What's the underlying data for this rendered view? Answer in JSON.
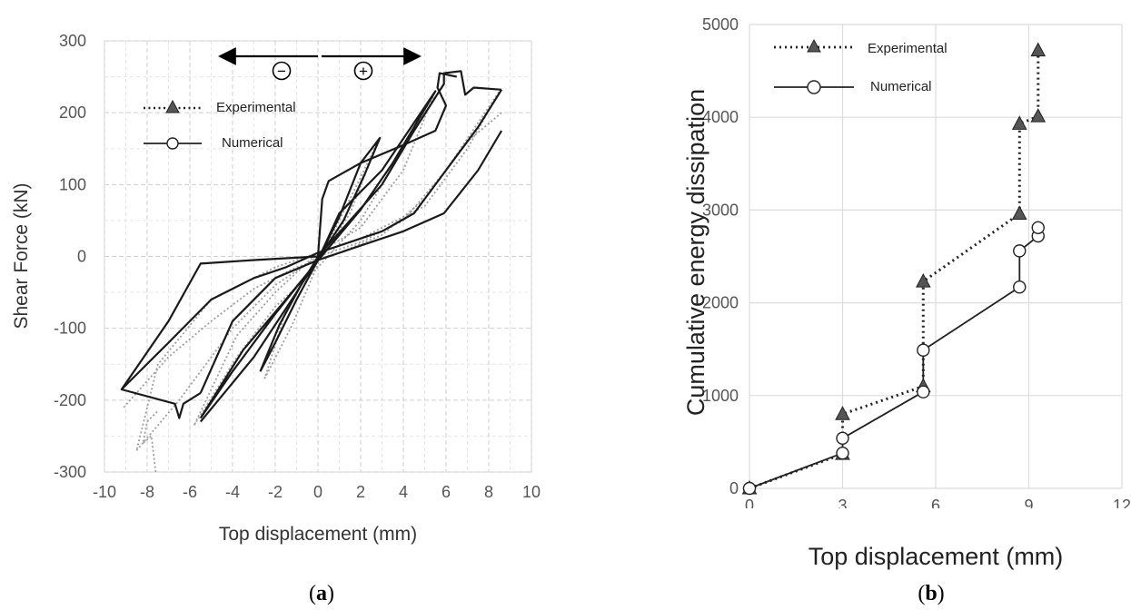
{
  "chart_data": [
    {
      "type": "line",
      "panel_label": "a",
      "ylabel": "Shear Force (kN)",
      "xlabel": "Top displacement (mm)",
      "xlim": [
        -10,
        10
      ],
      "ylim": [
        -300,
        300
      ],
      "x_ticks": [
        -10,
        -8,
        -6,
        -4,
        -2,
        0,
        2,
        4,
        6,
        8,
        10
      ],
      "y_ticks": [
        -300,
        -200,
        -100,
        0,
        100,
        200,
        300
      ],
      "x_tick_labels": [
        "-10",
        "-8",
        "-6",
        "-4",
        "-2",
        "0",
        "2",
        "4",
        "6",
        "8",
        "10"
      ],
      "y_tick_labels": [
        "-300",
        "-200",
        "-100",
        "0",
        "100",
        "200",
        "300"
      ],
      "grid": "dashed",
      "legend_position": "top-left",
      "annotation_signs": [
        "−",
        "+"
      ],
      "series": [
        {
          "name": "Experimental",
          "style": "dotted",
          "color": "#9e9e9e",
          "loops": [
            [
              [
                -2.5,
                -170
              ],
              [
                -1.2,
                -95
              ],
              [
                0,
                -10
              ],
              [
                1,
                50
              ],
              [
                2,
                110
              ],
              [
                2.8,
                160
              ],
              [
                1.5,
                60
              ],
              [
                0.5,
                15
              ],
              [
                -0.5,
                -25
              ],
              [
                -1.5,
                -75
              ],
              [
                -2.5,
                -170
              ]
            ],
            [
              [
                -5.8,
                -235
              ],
              [
                -3.8,
                -140
              ],
              [
                -2,
                -70
              ],
              [
                0,
                -15
              ],
              [
                2,
                50
              ],
              [
                4,
                150
              ],
              [
                5.5,
                230
              ],
              [
                4,
                120
              ],
              [
                2,
                40
              ],
              [
                0,
                5
              ],
              [
                -2,
                -50
              ],
              [
                -3.8,
                -110
              ],
              [
                -5.8,
                -235
              ]
            ],
            [
              [
                -8.5,
                -270
              ],
              [
                -6.5,
                -200
              ],
              [
                -4,
                -100
              ],
              [
                -2,
                -40
              ],
              [
                0,
                0
              ],
              [
                2,
                20
              ],
              [
                4,
                50
              ],
              [
                6,
                120
              ],
              [
                8.5,
                230
              ],
              [
                7,
                150
              ],
              [
                5,
                70
              ],
              [
                2,
                25
              ],
              [
                0,
                5
              ],
              [
                -2,
                -15
              ],
              [
                -5,
                -60
              ],
              [
                -7.5,
                -150
              ],
              [
                -8.5,
                -270
              ]
            ],
            [
              [
                -7.6,
                -300
              ],
              [
                -7.8,
                -250
              ],
              [
                -8.2,
                -260
              ],
              [
                -8,
                -230
              ],
              [
                -7.5,
                -215
              ]
            ],
            [
              [
                -9.1,
                -210
              ],
              [
                -7,
                -140
              ],
              [
                -5,
                -90
              ],
              [
                -3,
                -45
              ],
              [
                -1,
                -15
              ],
              [
                1,
                5
              ],
              [
                3,
                30
              ],
              [
                5,
                80
              ],
              [
                7,
                160
              ],
              [
                8.6,
                200
              ]
            ]
          ]
        },
        {
          "name": "Numerical",
          "style": "solid",
          "color": "#1a1a1a",
          "loops": [
            [
              [
                -2.7,
                -160
              ],
              [
                -2,
                -120
              ],
              [
                -1,
                -60
              ],
              [
                0,
                -5
              ],
              [
                1,
                55
              ],
              [
                2,
                130
              ],
              [
                2.9,
                165
              ],
              [
                2.2,
                115
              ],
              [
                1.2,
                50
              ],
              [
                0.2,
                5
              ],
              [
                -0.8,
                -40
              ],
              [
                -1.8,
                -95
              ],
              [
                -2.7,
                -160
              ]
            ],
            [
              [
                -5.5,
                -225
              ],
              [
                -4,
                -160
              ],
              [
                -2,
                -80
              ],
              [
                0,
                -5
              ],
              [
                1,
                60
              ],
              [
                3,
                120
              ],
              [
                5.5,
                230
              ],
              [
                3.5,
                130
              ],
              [
                2,
                65
              ],
              [
                0.3,
                5
              ],
              [
                -1.5,
                -60
              ],
              [
                -3.5,
                -130
              ],
              [
                -5.5,
                -225
              ]
            ],
            [
              [
                -5.5,
                -230
              ],
              [
                -3,
                -140
              ],
              [
                -1,
                -50
              ],
              [
                0,
                0
              ],
              [
                1.5,
                50
              ],
              [
                3,
                100
              ],
              [
                4.5,
                175
              ],
              [
                5.9,
                240
              ],
              [
                5.9,
                255
              ],
              [
                6.7,
                258
              ],
              [
                6.9,
                225
              ],
              [
                7.3,
                235
              ],
              [
                8.6,
                232
              ]
            ],
            [
              [
                8.6,
                232
              ],
              [
                7.5,
                180
              ],
              [
                6,
                120
              ],
              [
                4.5,
                60
              ],
              [
                3,
                35
              ],
              [
                1.5,
                20
              ],
              [
                0,
                5
              ],
              [
                -1.5,
                -15
              ],
              [
                -3,
                -30
              ],
              [
                -5,
                -60
              ],
              [
                -7,
                -120
              ],
              [
                -9.2,
                -185
              ],
              [
                -6.7,
                -205
              ],
              [
                -6.5,
                -225
              ],
              [
                -6.3,
                -205
              ],
              [
                -5.5,
                -190
              ]
            ],
            [
              [
                -5.5,
                -190
              ],
              [
                -4,
                -90
              ],
              [
                -2,
                -30
              ],
              [
                0,
                -5
              ],
              [
                2,
                15
              ],
              [
                4,
                35
              ],
              [
                5.9,
                60
              ],
              [
                7.5,
                120
              ],
              [
                8.6,
                175
              ]
            ],
            [
              [
                -9.2,
                -185
              ],
              [
                -7,
                -90
              ],
              [
                -5.5,
                -10
              ],
              [
                -3,
                -5
              ],
              [
                0,
                0
              ],
              [
                0.2,
                80
              ],
              [
                0.5,
                105
              ],
              [
                2,
                130
              ],
              [
                4,
                155
              ],
              [
                5.5,
                175
              ],
              [
                6,
                210
              ],
              [
                5.6,
                235
              ],
              [
                5.7,
                255
              ],
              [
                6.5,
                250
              ]
            ]
          ]
        }
      ]
    },
    {
      "type": "line",
      "panel_label": "b",
      "ylabel": "Cumulative energy dissipation",
      "xlabel": "Top displacement (mm)",
      "xlim": [
        0,
        12
      ],
      "ylim": [
        0,
        5000
      ],
      "x_ticks": [
        0,
        3,
        6,
        9,
        12
      ],
      "y_ticks": [
        0,
        1000,
        2000,
        3000,
        4000,
        5000
      ],
      "x_tick_labels": [
        "0",
        "3",
        "6",
        "9",
        "12"
      ],
      "y_tick_labels": [
        "0",
        "1000",
        "2000",
        "3000",
        "4000",
        "5000"
      ],
      "grid": "solid",
      "legend_position": "top-left",
      "series": [
        {
          "name": "Experimental",
          "style": "dotted",
          "marker": "triangle",
          "color": "#222222",
          "x": [
            0,
            3,
            3,
            5.6,
            5.6,
            8.7,
            8.7,
            9.3,
            9.3
          ],
          "y": [
            0,
            370,
            800,
            1100,
            2230,
            2960,
            3930,
            4010,
            4720
          ]
        },
        {
          "name": "Numerical",
          "style": "solid",
          "marker": "circle",
          "color": "#222222",
          "x": [
            0,
            3,
            3,
            5.6,
            5.6,
            8.7,
            8.7,
            9.3,
            9.3
          ],
          "y": [
            0,
            380,
            540,
            1040,
            1490,
            2170,
            2560,
            2720,
            2810
          ]
        }
      ]
    }
  ]
}
